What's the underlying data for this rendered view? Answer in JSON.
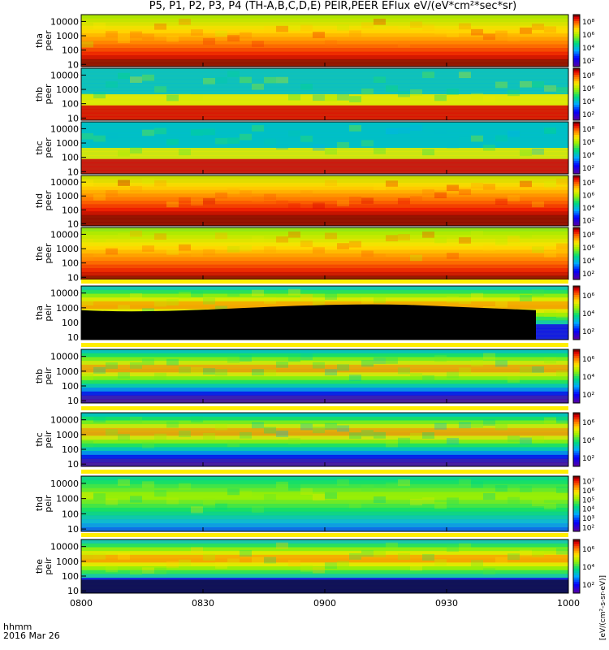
{
  "title": "P5, P1, P2, P3, P4 (TH-A,B,C,D,E) PEIR,PEER EFlux eV/(eV*cm²*sec*sr)",
  "footer": {
    "time_label": "hhmm",
    "date_label": "2016 Mar 26"
  },
  "colorbar_unit_left": "[eV/(cm²-s-sr-eV)]",
  "colorbar_unit_right": "eV/(eV*cm²*sec*sr) (#)",
  "colors": {
    "low": "#1a00c8",
    "mid_low": "#00b4ff",
    "mid": "#00e000",
    "mid_high": "#ffe000",
    "high": "#ff2000",
    "max": "#8b0000",
    "fill_value": "#000000"
  },
  "chart_data": [
    {
      "type": "heatmap",
      "panel": "tha peer",
      "ylabel": "tha\npeer",
      "yscale": "log",
      "ylim": [
        7,
        30000
      ],
      "yticks": [
        "10000",
        "1000",
        "100",
        "10"
      ],
      "x": [
        "0800",
        "0830",
        "0900",
        "0930",
        "1000"
      ],
      "colorbar_ticks": [
        "10⁸",
        "10⁶",
        "10⁴",
        "10²"
      ],
      "level": 0.78
    },
    {
      "type": "heatmap",
      "panel": "thb peer",
      "ylabel": "thb\npeer",
      "yscale": "log",
      "ylim": [
        7,
        30000
      ],
      "yticks": [
        "10000",
        "1000",
        "100",
        "10"
      ],
      "x": [
        "0800",
        "0830",
        "0900",
        "0930",
        "1000"
      ],
      "colorbar_ticks": [
        "10⁸",
        "10⁶",
        "10⁴",
        "10²"
      ],
      "level": 0.55
    },
    {
      "type": "heatmap",
      "panel": "thc peer",
      "ylabel": "thc\npeer",
      "yscale": "log",
      "ylim": [
        7,
        30000
      ],
      "yticks": [
        "10000",
        "1000",
        "100",
        "10"
      ],
      "x": [
        "0800",
        "0830",
        "0900",
        "0930",
        "1000"
      ],
      "colorbar_ticks": [
        "10⁸",
        "10⁶",
        "10⁴",
        "10²"
      ],
      "level": 0.45
    },
    {
      "type": "heatmap",
      "panel": "thd peer",
      "ylabel": "thd\npeer",
      "yscale": "log",
      "ylim": [
        7,
        30000
      ],
      "yticks": [
        "10000",
        "1000",
        "100",
        "10"
      ],
      "x": [
        "0800",
        "0830",
        "0900",
        "0930",
        "1000"
      ],
      "colorbar_ticks": [
        "10⁸",
        "10⁶",
        "10⁴",
        "10²"
      ],
      "level": 0.82
    },
    {
      "type": "heatmap",
      "panel": "the peer",
      "ylabel": "the\npeer",
      "yscale": "log",
      "ylim": [
        7,
        30000
      ],
      "yticks": [
        "10000",
        "1000",
        "100",
        "10"
      ],
      "x": [
        "0800",
        "0830",
        "0900",
        "0930",
        "1000"
      ],
      "colorbar_ticks": [
        "10⁸",
        "10⁶",
        "10⁴",
        "10²"
      ],
      "level": 0.75
    },
    {
      "type": "heatmap",
      "panel": "tha peir",
      "ylabel": "tha\npeir",
      "yscale": "log",
      "ylim": [
        7,
        30000
      ],
      "yticks": [
        "10000",
        "1000",
        "100",
        "10"
      ],
      "x": [
        "0800",
        "0830",
        "0900",
        "0930",
        "1000"
      ],
      "colorbar_ticks": [
        "10⁶",
        "10⁴",
        "10²"
      ],
      "level": 0.6
    },
    {
      "type": "heatmap",
      "panel": "thb peir",
      "ylabel": "thb\npeir",
      "yscale": "log",
      "ylim": [
        7,
        30000
      ],
      "yticks": [
        "10000",
        "1000",
        "100",
        "10"
      ],
      "x": [
        "0800",
        "0830",
        "0900",
        "0930",
        "1000"
      ],
      "colorbar_ticks": [
        "10⁶",
        "10⁴",
        "10²"
      ],
      "level": 0.5
    },
    {
      "type": "heatmap",
      "panel": "thc peir",
      "ylabel": "thc\npeir",
      "yscale": "log",
      "ylim": [
        7,
        30000
      ],
      "yticks": [
        "10000",
        "1000",
        "100",
        "10"
      ],
      "x": [
        "0800",
        "0830",
        "0900",
        "0930",
        "1000"
      ],
      "colorbar_ticks": [
        "10⁶",
        "10⁴",
        "10²"
      ],
      "level": 0.48
    },
    {
      "type": "heatmap",
      "panel": "thd peir",
      "ylabel": "thd\npeir",
      "yscale": "log",
      "ylim": [
        7,
        30000
      ],
      "yticks": [
        "10000",
        "1000",
        "100",
        "10"
      ],
      "x": [
        "0800",
        "0830",
        "0900",
        "0930",
        "1000"
      ],
      "colorbar_ticks": [
        "10⁷",
        "10⁶",
        "10⁵",
        "10⁴",
        "10³",
        "10²"
      ],
      "level": 0.55
    },
    {
      "type": "heatmap",
      "panel": "the peir",
      "ylabel": "the\npeir",
      "yscale": "log",
      "ylim": [
        7,
        30000
      ],
      "yticks": [
        "10000",
        "1000",
        "100",
        "10"
      ],
      "x": [
        "0800",
        "0830",
        "0900",
        "0930",
        "1000"
      ],
      "colorbar_ticks": [
        "10⁶",
        "10⁴",
        "10²"
      ],
      "level": 0.62
    }
  ]
}
